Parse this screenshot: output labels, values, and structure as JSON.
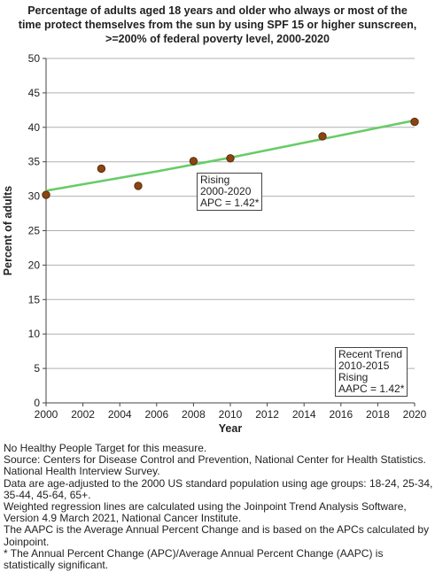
{
  "chart_data": {
    "type": "scatter",
    "title_lines": [
      "Percentage of adults aged 18 years and older who always or most of the",
      "time protect themselves from the sun by using SPF 15 or higher sunscreen,",
      ">=200% of federal poverty level,  2000-2020"
    ],
    "xlabel": "Year",
    "ylabel": "Percent of adults",
    "xlim": [
      2000,
      2020
    ],
    "ylim": [
      0,
      50
    ],
    "x_ticks": [
      "2000",
      "2002",
      "2004",
      "2006",
      "2008",
      "2010",
      "2012",
      "2014",
      "2016",
      "2018",
      "2020"
    ],
    "y_ticks": [
      "0",
      "5",
      "10",
      "15",
      "20",
      "25",
      "30",
      "35",
      "40",
      "45",
      "50"
    ],
    "grid": "horizontal",
    "points": [
      {
        "x": 2000,
        "y": 30.2
      },
      {
        "x": 2003,
        "y": 34.0
      },
      {
        "x": 2005,
        "y": 31.5
      },
      {
        "x": 2008,
        "y": 35.1
      },
      {
        "x": 2010,
        "y": 35.5
      },
      {
        "x": 2015,
        "y": 38.7
      },
      {
        "x": 2020,
        "y": 40.8
      }
    ],
    "regression_line": [
      {
        "x": 2000,
        "y": 30.8
      },
      {
        "x": 2003,
        "y": 32.2
      },
      {
        "x": 2006,
        "y": 33.6
      },
      {
        "x": 2010,
        "y": 35.6
      },
      {
        "x": 2015,
        "y": 38.3
      },
      {
        "x": 2020,
        "y": 41.0
      }
    ],
    "colors": {
      "point_fill": "#8b4513",
      "point_stroke": "#5a2a0a",
      "line": "#66cc66",
      "grid": "#b0b0b0",
      "axis": "#444444"
    },
    "annotations": [
      {
        "lines": [
          "Rising",
          "2000-2020",
          "APC =  1.42*"
        ]
      },
      {
        "lines": [
          "Recent Trend",
          "2010-2015",
          "Rising",
          "AAPC =  1.42*"
        ]
      }
    ]
  },
  "notes": [
    "No Healthy People Target for this measure.",
    "Source: Centers for Disease Control and Prevention, National Center for Health Statistics. National Health Interview Survey.",
    "Data are age-adjusted to the 2000 US standard population using age groups: 18-24, 25-34, 35-44, 45-64, 65+.",
    "Weighted regression lines are calculated using the Joinpoint Trend Analysis Software, Version 4.9 March 2021, National Cancer Institute.",
    "The AAPC is the Average Annual Percent Change and is based on the APCs calculated by Joinpoint.",
    "* The Annual Percent Change (APC)/Average Annual Percent Change (AAPC) is statistically significant."
  ]
}
